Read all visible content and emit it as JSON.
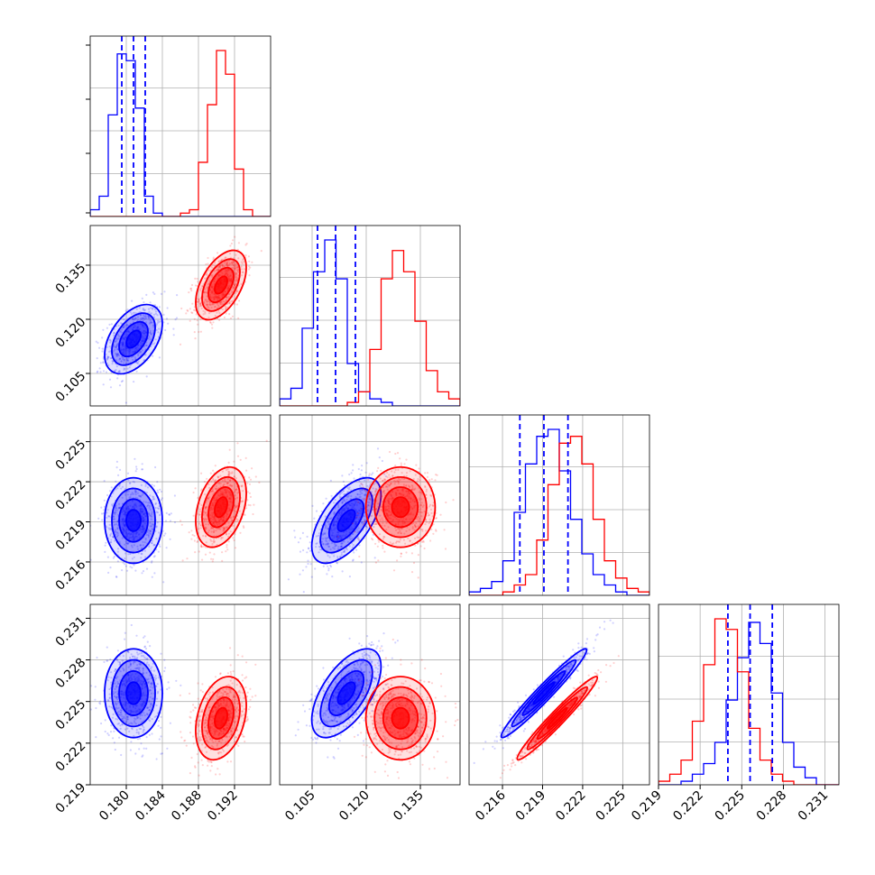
{
  "chart_data": {
    "type": "corner",
    "grid": true,
    "legend": "none",
    "colors": {
      "blue_series": "#0000ff",
      "red_series": "#ff0000"
    },
    "series": [
      {
        "color": "blue",
        "mean": [
          0.1808,
          0.1145,
          0.2191,
          0.2256
        ],
        "std": [
          0.0016,
          0.0048,
          0.0016,
          0.0016
        ],
        "quantiles": [
          [
            0.1795,
            0.1808,
            0.1821
          ],
          [
            0.1065,
            0.1115,
            0.117
          ],
          [
            0.2173,
            0.2191,
            0.2209
          ],
          [
            0.224,
            0.2256,
            0.2272
          ]
        ],
        "corr_pairs": [
          [
            1,
            0,
            0.45
          ],
          [
            2,
            0,
            0.0
          ],
          [
            2,
            1,
            0.6
          ],
          [
            3,
            0,
            0.0
          ],
          [
            3,
            1,
            0.6
          ],
          [
            3,
            2,
            0.97
          ]
        ]
      },
      {
        "color": "red",
        "mean": [
          0.1905,
          0.1295,
          0.2201,
          0.2238
        ],
        "std": [
          0.0014,
          0.0048,
          0.0015,
          0.0015
        ],
        "corr_pairs": [
          [
            1,
            0,
            0.5
          ],
          [
            2,
            0,
            0.35
          ],
          [
            2,
            1,
            0.0
          ],
          [
            3,
            0,
            0.3
          ],
          [
            3,
            1,
            0.0
          ],
          [
            3,
            2,
            0.97
          ]
        ]
      }
    ],
    "ranges": [
      [
        0.176,
        0.196
      ],
      [
        0.096,
        0.146
      ],
      [
        0.2135,
        0.227
      ],
      [
        0.219,
        0.232
      ]
    ],
    "ticks": {
      "x": [
        {
          "values": [
            0.18,
            0.184,
            0.188,
            0.192
          ],
          "labels": [
            "0.180",
            "0.184",
            "0.188",
            "0.192"
          ]
        },
        {
          "values": [
            0.105,
            0.12,
            0.135
          ],
          "labels": [
            "0.105",
            "0.120",
            "0.135"
          ]
        },
        {
          "values": [
            0.216,
            0.219,
            0.222,
            0.225
          ],
          "labels": [
            "0.216",
            "0.219",
            "0.222",
            "0.225"
          ]
        },
        {
          "values": [
            0.219,
            0.222,
            0.225,
            0.228,
            0.231
          ],
          "labels": [
            "0.219",
            "0.222",
            "0.225",
            "0.228",
            "0.231"
          ]
        }
      ],
      "y": [
        null,
        {
          "values": [
            0.105,
            0.12,
            0.135
          ],
          "labels": [
            "0.105",
            "0.120",
            "0.135"
          ]
        },
        {
          "values": [
            0.216,
            0.219,
            0.222,
            0.225
          ],
          "labels": [
            "0.216",
            "0.219",
            "0.222",
            "0.225"
          ]
        },
        {
          "values": [
            0.219,
            0.222,
            0.225,
            0.228,
            0.231
          ],
          "labels": [
            "0.219",
            "0.222",
            "0.225",
            "0.228",
            "0.231"
          ]
        }
      ]
    },
    "histograms": {
      "blue": [
        [
          2,
          6,
          30,
          48,
          46,
          32,
          6,
          1,
          0,
          0,
          0,
          0,
          0,
          0,
          0,
          0,
          0,
          0,
          0,
          0
        ],
        [
          2,
          5,
          22,
          38,
          47,
          36,
          12,
          4,
          2,
          1,
          0,
          0,
          0,
          0,
          0,
          0
        ],
        [
          1,
          2,
          4,
          10,
          24,
          38,
          46,
          48,
          36,
          22,
          12,
          6,
          3,
          1,
          0,
          0
        ],
        [
          0,
          0,
          1,
          3,
          6,
          12,
          24,
          36,
          46,
          40,
          26,
          12,
          5,
          2,
          0,
          0
        ]
      ],
      "red": [
        [
          0,
          0,
          0,
          0,
          0,
          0,
          0,
          0,
          0,
          0,
          1,
          2,
          16,
          33,
          49,
          42,
          14,
          2,
          0,
          0
        ],
        [
          0,
          0,
          0,
          0,
          0,
          0,
          1,
          4,
          16,
          36,
          44,
          38,
          24,
          10,
          4,
          2
        ],
        [
          0,
          0,
          0,
          1,
          3,
          6,
          16,
          32,
          44,
          46,
          38,
          22,
          10,
          5,
          2,
          1
        ],
        [
          1,
          3,
          7,
          18,
          34,
          47,
          44,
          32,
          16,
          7,
          3,
          1,
          0,
          0,
          0,
          0
        ]
      ]
    }
  }
}
